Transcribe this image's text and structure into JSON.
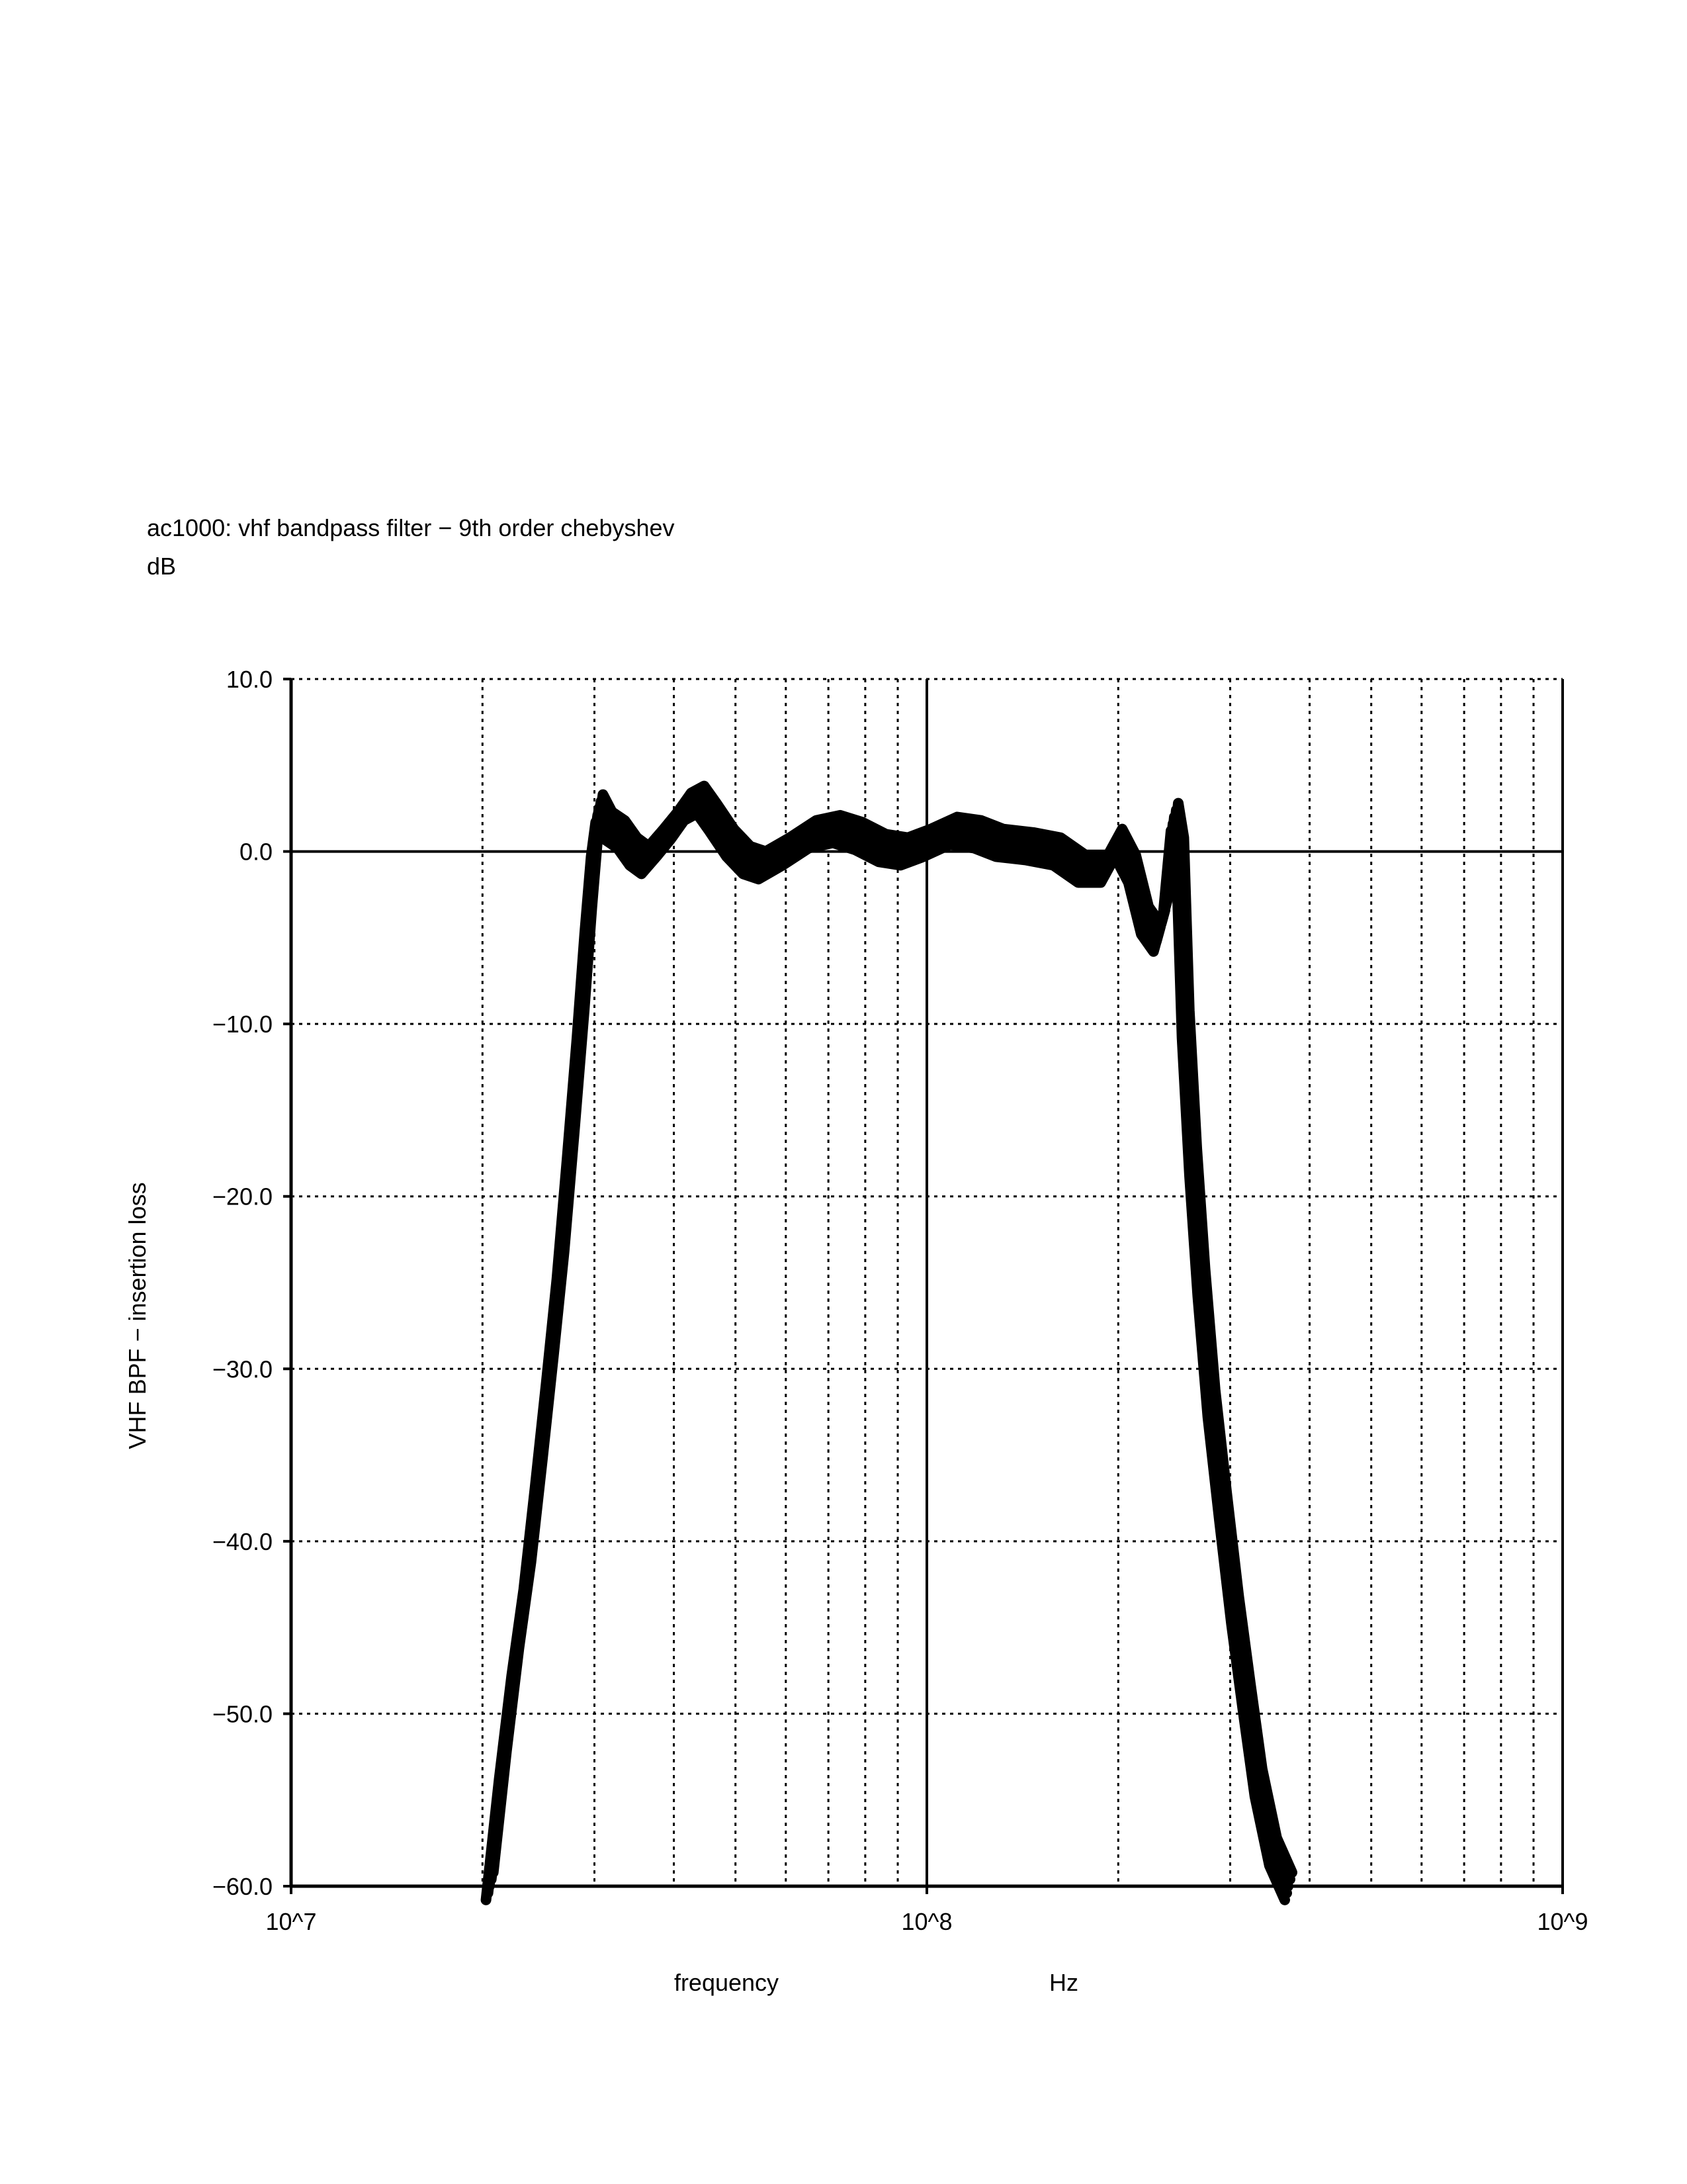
{
  "chart_data": {
    "type": "line",
    "title": "ac1000: vhf bandpass filter − 9th order chebyshev",
    "y_unit": "dB",
    "ylabel": "VHF BPF − insertion loss",
    "xlabel": "frequency",
    "x_unit": "Hz",
    "x_scale": "log",
    "xlim": [
      10000000,
      1000000000
    ],
    "ylim": [
      -60,
      10
    ],
    "grid": true,
    "x_tick_labels": [
      "10^7",
      "10^8",
      "10^9"
    ],
    "y_tick_labels": [
      "10.0",
      "0.0",
      "−10.0",
      "−20.0",
      "−30.0",
      "−40.0",
      "−50.0",
      "−60.0"
    ],
    "y_ticks": [
      10,
      0,
      -10,
      -20,
      -30,
      -40,
      -50,
      -60
    ],
    "series": [
      {
        "color": "#000000",
        "style": "monte-carlo band (many overlaid runs)",
        "points": [
          [
            20500000,
            -60
          ],
          [
            21500000,
            -53
          ],
          [
            22500000,
            -47
          ],
          [
            23500000,
            -42
          ],
          [
            24500000,
            -36
          ],
          [
            25500000,
            -30
          ],
          [
            26500000,
            -24
          ],
          [
            27500000,
            -17
          ],
          [
            28500000,
            -10
          ],
          [
            29300000,
            -4
          ],
          [
            30000000,
            0.5
          ],
          [
            30500000,
            2.5
          ],
          [
            31500000,
            1.5
          ],
          [
            33000000,
            1.0
          ],
          [
            34500000,
            0.0
          ],
          [
            36000000,
            -0.5
          ],
          [
            38000000,
            0.5
          ],
          [
            40000000,
            1.5
          ],
          [
            42000000,
            2.6
          ],
          [
            44000000,
            3.0
          ],
          [
            46000000,
            2.0
          ],
          [
            49000000,
            0.5
          ],
          [
            52000000,
            -0.5
          ],
          [
            55000000,
            -0.8
          ],
          [
            60000000,
            0.0
          ],
          [
            66000000,
            1.0
          ],
          [
            72000000,
            1.3
          ],
          [
            78000000,
            0.9
          ],
          [
            85000000,
            0.2
          ],
          [
            92000000,
            0.0
          ],
          [
            100000000,
            0.5
          ],
          [
            110000000,
            1.2
          ],
          [
            120000000,
            1.0
          ],
          [
            130000000,
            0.5
          ],
          [
            145000000,
            0.3
          ],
          [
            160000000,
            0.0
          ],
          [
            175000000,
            -1.0
          ],
          [
            190000000,
            -1.0
          ],
          [
            200000000,
            0.5
          ],
          [
            210000000,
            -1.0
          ],
          [
            220000000,
            -4.0
          ],
          [
            230000000,
            -5.0
          ],
          [
            238000000,
            -3.0
          ],
          [
            245000000,
            2.0
          ],
          [
            250000000,
            0.0
          ],
          [
            255000000,
            -10.0
          ],
          [
            262000000,
            -18.0
          ],
          [
            270000000,
            -25.0
          ],
          [
            280000000,
            -32.0
          ],
          [
            292000000,
            -38.0
          ],
          [
            305000000,
            -44.0
          ],
          [
            318000000,
            -49.0
          ],
          [
            332000000,
            -54.0
          ],
          [
            350000000,
            -58.0
          ],
          [
            370000000,
            -60.0
          ]
        ]
      }
    ]
  }
}
